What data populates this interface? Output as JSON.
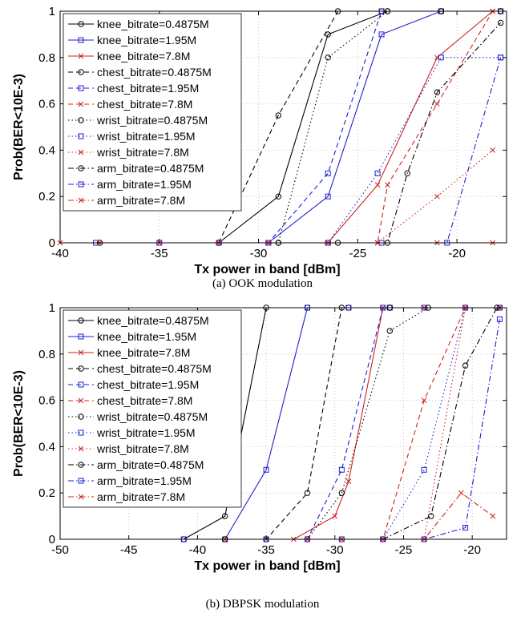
{
  "charts": [
    {
      "id": "a",
      "caption": "(a) OOK modulation",
      "chart_data": {
        "type": "line",
        "xlabel": "Tx power in band [dBm]",
        "ylabel": "Prob(BER<10E-3)",
        "xlim": [
          -40,
          -17.5
        ],
        "ylim": [
          0,
          1
        ],
        "xticks": [
          -40,
          -35,
          -30,
          -25,
          -20
        ],
        "yticks": [
          0,
          0.2,
          0.4,
          0.6,
          0.8,
          1
        ],
        "grid": true,
        "legend": "top-left",
        "series": [
          {
            "name": "knee_bitrate=0.4875M",
            "color": "#000000",
            "marker": "circle",
            "dash": "solid",
            "x": [
              -38,
              -32,
              -29,
              -26.5,
              -23.5,
              -20.8,
              -17.8
            ],
            "y": [
              0,
              0,
              0.2,
              0.9,
              1,
              1,
              1
            ]
          },
          {
            "name": "knee_bitrate=1.95M",
            "color": "#1f1fd0",
            "marker": "square",
            "dash": "solid",
            "x": [
              -38.2,
              -35,
              -32,
              -29.5,
              -26.5,
              -23.8,
              -20.8,
              -17.8
            ],
            "y": [
              0,
              0,
              0,
              0,
              0.2,
              0.9,
              1,
              1
            ]
          },
          {
            "name": "knee_bitrate=7.8M",
            "color": "#d02020",
            "marker": "x",
            "dash": "solid",
            "x": [
              -40,
              -38,
              -35,
              -32,
              -29.5,
              -26.5,
              -24,
              -21,
              -18.2
            ],
            "y": [
              0,
              0,
              0,
              0,
              0,
              0,
              0.25,
              0.8,
              1
            ]
          },
          {
            "name": "chest_bitrate=0.4875M",
            "color": "#000000",
            "marker": "circle",
            "dash": "dashed",
            "x": [
              -32,
              -29,
              -26,
              -23.8,
              -20.8,
              -17.8
            ],
            "y": [
              0,
              0.55,
              1,
              1,
              1,
              1
            ]
          },
          {
            "name": "chest_bitrate=1.95M",
            "color": "#1f1fd0",
            "marker": "square",
            "dash": "dashed",
            "x": [
              -32,
              -29.5,
              -26.5,
              -23.8,
              -20.8,
              -17.8
            ],
            "y": [
              0,
              0,
              0.3,
              1,
              1,
              1
            ]
          },
          {
            "name": "chest_bitrate=7.8M",
            "color": "#d02020",
            "marker": "x",
            "dash": "dashed",
            "x": [
              -32,
              -29.5,
              -26.5,
              -24,
              -23.5,
              -21,
              -18.2
            ],
            "y": [
              0,
              0,
              0,
              0,
              0.25,
              0.6,
              1
            ]
          },
          {
            "name": "wrist_bitrate=0.4875M",
            "color": "#000000",
            "marker": "circle",
            "dash": "dotted",
            "x": [
              -32,
              -29,
              -26.5,
              -23.5,
              -20.8,
              -17.8
            ],
            "y": [
              0,
              0,
              0.8,
              1,
              1,
              1
            ]
          },
          {
            "name": "wrist_bitrate=1.95M",
            "color": "#1f1fd0",
            "marker": "square",
            "dash": "dotted",
            "x": [
              -32,
              -29.5,
              -26.5,
              -24,
              -20.8,
              -17.8
            ],
            "y": [
              0,
              0,
              0,
              0.3,
              0.8,
              0.8
            ]
          },
          {
            "name": "wrist_bitrate=7.8M",
            "color": "#d02020",
            "marker": "x",
            "dash": "dotted",
            "x": [
              -32,
              -29.5,
              -26.5,
              -24,
              -21,
              -18.2
            ],
            "y": [
              0,
              0,
              0,
              0,
              0.2,
              0.4
            ]
          },
          {
            "name": "arm_bitrate=0.4875M",
            "color": "#000000",
            "marker": "circle",
            "dash": "dashdot",
            "x": [
              -32,
              -29,
              -26,
              -23.5,
              -22.5,
              -21,
              -17.8
            ],
            "y": [
              0,
              0,
              0,
              0,
              0.3,
              0.65,
              0.95
            ]
          },
          {
            "name": "arm_bitrate=1.95M",
            "color": "#1f1fd0",
            "marker": "square",
            "dash": "dashdot",
            "x": [
              -32,
              -29.5,
              -26.5,
              -23.8,
              -20.5,
              -17.8
            ],
            "y": [
              0,
              0,
              0,
              0,
              0,
              0.8
            ]
          },
          {
            "name": "arm_bitrate=7.8M",
            "color": "#d02020",
            "marker": "x",
            "dash": "dashdot",
            "x": [
              -32,
              -29.5,
              -26.5,
              -24,
              -21,
              -18.2
            ],
            "y": [
              0,
              0,
              0,
              0,
              0,
              0
            ]
          }
        ]
      }
    },
    {
      "id": "b",
      "caption": "(b) DBPSK modulation",
      "chart_data": {
        "type": "line",
        "xlabel": "Tx power in band [dBm]",
        "ylabel": "Prob(BER<10E-3)",
        "xlim": [
          -50,
          -17.5
        ],
        "ylim": [
          0,
          1
        ],
        "xticks": [
          -50,
          -45,
          -40,
          -35,
          -30,
          -25,
          -20
        ],
        "yticks": [
          0,
          0.2,
          0.4,
          0.6,
          0.8,
          1
        ],
        "grid": true,
        "legend": "top-left",
        "series": [
          {
            "name": "knee_bitrate=0.4875M",
            "color": "#000000",
            "marker": "circle",
            "dash": "solid",
            "x": [
              -41,
              -38,
              -35,
              -32,
              -29,
              -26
            ],
            "y": [
              0,
              0.1,
              1,
              1,
              1,
              1
            ]
          },
          {
            "name": "knee_bitrate=1.95M",
            "color": "#1f1fd0",
            "marker": "square",
            "dash": "solid",
            "x": [
              -41,
              -38,
              -35,
              -32,
              -29,
              -26
            ],
            "y": [
              0,
              0,
              0.3,
              1,
              1,
              1
            ]
          },
          {
            "name": "knee_bitrate=7.8M",
            "color": "#d02020",
            "marker": "x",
            "dash": "solid",
            "x": [
              -38,
              -35,
              -33,
              -30,
              -29,
              -26.5,
              -23.5,
              -20.5,
              -18
            ],
            "y": [
              0,
              0,
              0,
              0.1,
              0.25,
              1,
              1,
              1,
              1
            ]
          },
          {
            "name": "chest_bitrate=0.4875M",
            "color": "#000000",
            "marker": "circle",
            "dash": "dashed",
            "x": [
              -38,
              -35,
              -32,
              -29.5,
              -26
            ],
            "y": [
              0,
              0,
              0.2,
              1,
              1
            ]
          },
          {
            "name": "chest_bitrate=1.95M",
            "color": "#1f1fd0",
            "marker": "square",
            "dash": "dashed",
            "x": [
              -35,
              -32,
              -29.5,
              -26.5,
              -23.5
            ],
            "y": [
              0,
              0,
              0.3,
              1,
              1
            ]
          },
          {
            "name": "chest_bitrate=7.8M",
            "color": "#d02020",
            "marker": "x",
            "dash": "dashed",
            "x": [
              -32,
              -29.5,
              -26.5,
              -23.5,
              -20.5
            ],
            "y": [
              0,
              0,
              0,
              0.6,
              1
            ]
          },
          {
            "name": "wrist_bitrate=0.4875M",
            "color": "#000000",
            "marker": "circle",
            "dash": "dotted",
            "x": [
              -32,
              -29.5,
              -26,
              -23.2,
              -20.5
            ],
            "y": [
              0,
              0.2,
              0.9,
              1,
              1
            ]
          },
          {
            "name": "wrist_bitrate=1.95M",
            "color": "#1f1fd0",
            "marker": "square",
            "dash": "dotted",
            "x": [
              -32,
              -29.5,
              -26.5,
              -23.5,
              -20.5,
              -18
            ],
            "y": [
              0,
              0,
              0,
              0.3,
              1,
              1
            ]
          },
          {
            "name": "wrist_bitrate=7.8M",
            "color": "#d02020",
            "marker": "x",
            "dash": "dotted",
            "x": [
              -32,
              -29.5,
              -26.5,
              -23.5,
              -20.5,
              -18
            ],
            "y": [
              0,
              0,
              0,
              0,
              1,
              1
            ]
          },
          {
            "name": "arm_bitrate=0.4875M",
            "color": "#000000",
            "marker": "circle",
            "dash": "dashdot",
            "x": [
              -26.5,
              -23,
              -20.5,
              -18.2
            ],
            "y": [
              0,
              0.1,
              0.75,
              1
            ]
          },
          {
            "name": "arm_bitrate=1.95M",
            "color": "#1f1fd0",
            "marker": "square",
            "dash": "dashdot",
            "x": [
              -26.5,
              -23.5,
              -20.5,
              -18
            ],
            "y": [
              0,
              0,
              0.05,
              0.95
            ]
          },
          {
            "name": "arm_bitrate=7.8M",
            "color": "#d02020",
            "marker": "x",
            "dash": "dashdot",
            "x": [
              -26.5,
              -23.5,
              -20.8,
              -18.5
            ],
            "y": [
              0,
              0,
              0.2,
              0.1
            ]
          }
        ]
      }
    }
  ]
}
